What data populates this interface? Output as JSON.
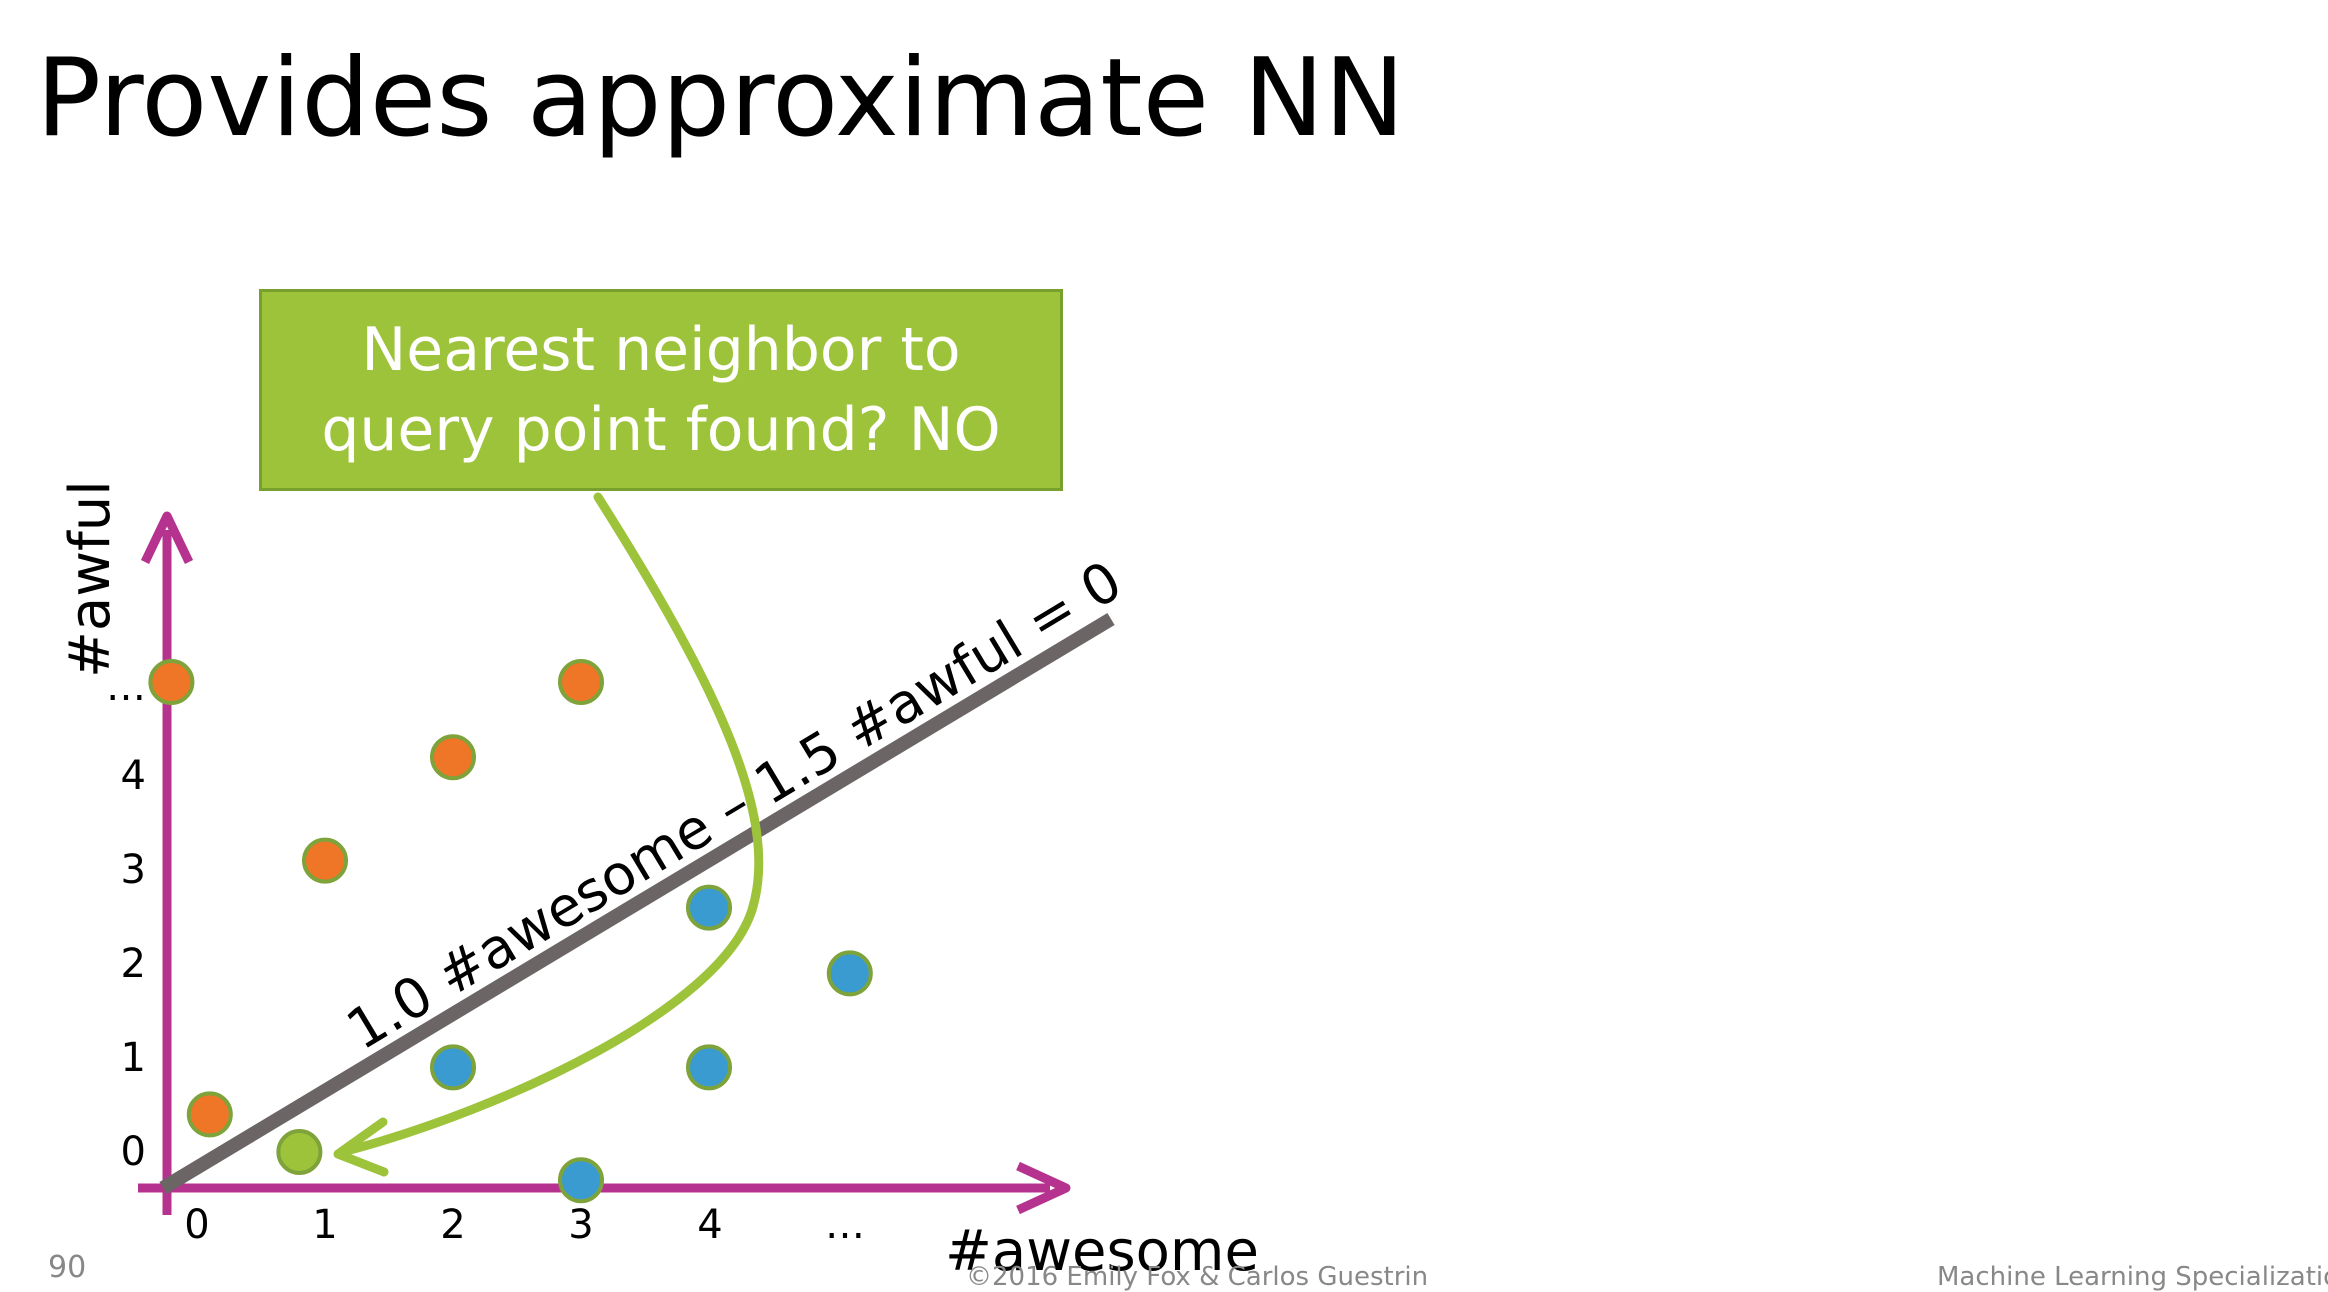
{
  "slide": {
    "title": "Provides approximate NN",
    "page_number": "90",
    "copyright": "©2016 Emily Fox & Carlos Guestrin",
    "course": "Machine Learning Specialization"
  },
  "callout": {
    "line1": "Nearest neighbor to",
    "line2": "query point found? NO"
  },
  "colors": {
    "axis": "#b5338f",
    "orange": "#ee7626",
    "blue": "#3a9bd0",
    "green": "#9dc33b",
    "point_outline": "#7ea33a",
    "decision_line": "#6b6566"
  },
  "chart_data": {
    "type": "scatter",
    "xlabel": "#awesome",
    "ylabel": "#awful",
    "x_ticks": [
      "0",
      "1",
      "2",
      "3",
      "4",
      "…"
    ],
    "y_ticks": [
      "0",
      "1",
      "2",
      "3",
      "4",
      "…"
    ],
    "decision_boundary": {
      "label": "1.0 #awesome – 1.5 #awful = 0"
    },
    "series": [
      {
        "color": "orange",
        "points": [
          [
            -0.2,
            5.0
          ],
          [
            0.1,
            0.4
          ],
          [
            1.0,
            3.1
          ],
          [
            2.0,
            4.2
          ],
          [
            3.0,
            5.0
          ]
        ]
      },
      {
        "color": "blue",
        "points": [
          [
            2.0,
            0.9
          ],
          [
            3.0,
            -0.3
          ],
          [
            4.0,
            2.6
          ],
          [
            4.0,
            0.9
          ],
          [
            5.1,
            1.9
          ]
        ]
      },
      {
        "color": "green",
        "points": [
          [
            0.8,
            0.0
          ]
        ]
      }
    ],
    "annotation": {
      "text_ref": "callout",
      "arrow_target": [
        0.8,
        0.0
      ]
    }
  }
}
